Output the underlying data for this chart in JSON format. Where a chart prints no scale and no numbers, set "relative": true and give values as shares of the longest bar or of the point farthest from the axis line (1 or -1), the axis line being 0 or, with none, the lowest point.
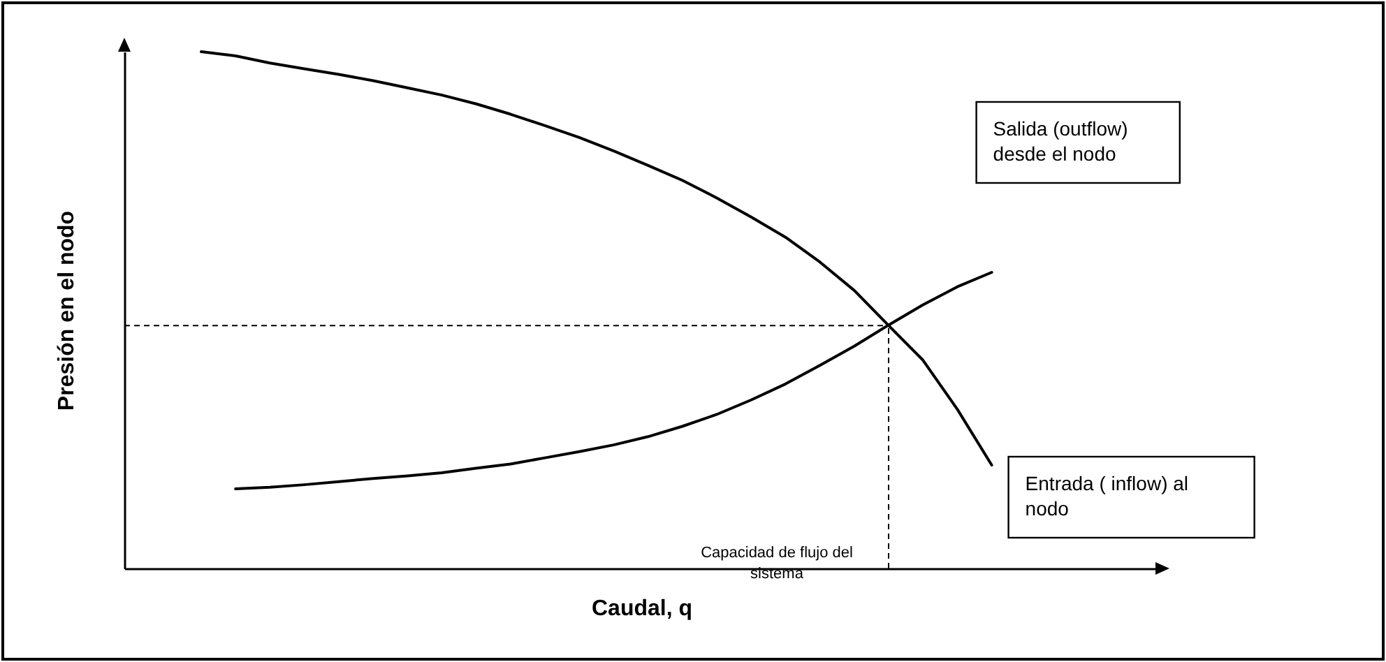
{
  "chart_data": {
    "type": "line",
    "xlabel": "Caudal, q",
    "ylabel": "Presión en el nodo",
    "relative": true,
    "tick_labels": false,
    "grid": false,
    "legend": false,
    "marker": "none",
    "line_style": "solid",
    "categories": [
      null,
      null,
      null,
      null,
      null,
      null,
      null,
      null,
      null,
      null,
      null,
      null,
      null,
      null,
      null,
      null,
      null,
      null,
      null,
      null,
      null,
      null,
      null,
      null
    ],
    "series": [
      {
        "name": "Entrada ( inflow) al nodo",
        "color": "#000000",
        "values": [
          1.0,
          0.992,
          0.978,
          0.967,
          0.956,
          0.944,
          0.93,
          0.916,
          0.899,
          0.879,
          0.857,
          0.834,
          0.808,
          0.78,
          0.751,
          0.717,
          0.68,
          0.641,
          0.593,
          0.538,
          0.47,
          0.403,
          0.308,
          0.2
        ]
      },
      {
        "name": "Salida (outflow) desde el nodo",
        "color": "#000000",
        "values": [
          null,
          0.154,
          0.157,
          0.162,
          0.168,
          0.174,
          0.179,
          0.185,
          0.194,
          0.202,
          0.214,
          0.226,
          0.239,
          0.255,
          0.275,
          0.298,
          0.326,
          0.357,
          0.393,
          0.43,
          0.471,
          0.51,
          0.545,
          0.573
        ]
      }
    ],
    "annotations": [
      "Capacidad de flujo del sistema"
    ],
    "ref_lines": [
      {
        "axis": "y",
        "value": 0.47,
        "line_style": "dashed"
      }
    ]
  }
}
